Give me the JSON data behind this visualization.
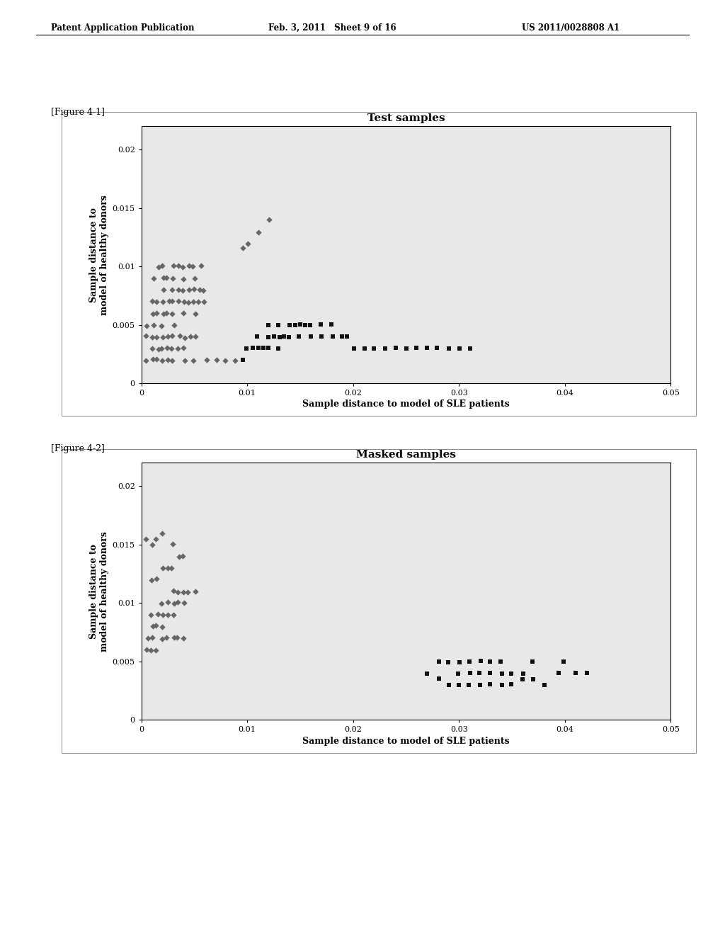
{
  "fig1_title": "Test samples",
  "fig2_title": "Masked samples",
  "xlabel": "Sample distance to model of SLE patients",
  "ylabel": "Sample distance to\nmodel of healthy donors",
  "xlim": [
    0,
    0.05
  ],
  "ylim": [
    0,
    0.022
  ],
  "xticks": [
    0,
    0.01,
    0.02,
    0.03,
    0.04,
    0.05
  ],
  "yticks": [
    0,
    0.005,
    0.01,
    0.015,
    0.02
  ],
  "header_left": "Patent Application Publication",
  "header_mid": "Feb. 3, 2011   Sheet 9 of 16",
  "header_right": "US 2011/0028808 A1",
  "fig1_label": "[Figure 4-1]",
  "fig2_label": "[Figure 4-2]",
  "plot_bg": "#e8e8e8",
  "fig1_cluster1_x": [
    0.0005,
    0.001,
    0.001,
    0.001,
    0.0015,
    0.0015,
    0.002,
    0.002,
    0.002,
    0.002,
    0.0025,
    0.0025,
    0.003,
    0.003,
    0.003,
    0.003,
    0.003,
    0.0035,
    0.0035,
    0.004,
    0.004,
    0.004,
    0.004,
    0.0045,
    0.0045,
    0.005,
    0.005,
    0.005,
    0.005,
    0.0055,
    0.0055,
    0.006,
    0.006,
    0.001,
    0.0015,
    0.002,
    0.002,
    0.0025,
    0.003,
    0.0035,
    0.004,
    0.0045,
    0.005,
    0.0055,
    0.0005,
    0.001,
    0.0015,
    0.002,
    0.0025,
    0.003,
    0.0035,
    0.004,
    0.0045,
    0.005,
    0.001,
    0.0015,
    0.002,
    0.0025,
    0.003,
    0.0035,
    0.004,
    0.0005,
    0.001,
    0.0015,
    0.002,
    0.0025,
    0.003,
    0.004,
    0.005,
    0.006,
    0.007,
    0.008,
    0.009,
    0.0095,
    0.01,
    0.011,
    0.012
  ],
  "fig1_cluster1_y": [
    0.005,
    0.005,
    0.006,
    0.007,
    0.006,
    0.007,
    0.005,
    0.006,
    0.007,
    0.008,
    0.006,
    0.007,
    0.005,
    0.006,
    0.007,
    0.008,
    0.009,
    0.007,
    0.008,
    0.006,
    0.007,
    0.008,
    0.009,
    0.007,
    0.008,
    0.006,
    0.007,
    0.008,
    0.009,
    0.007,
    0.008,
    0.007,
    0.008,
    0.009,
    0.01,
    0.009,
    0.01,
    0.009,
    0.01,
    0.01,
    0.01,
    0.01,
    0.01,
    0.01,
    0.004,
    0.004,
    0.004,
    0.004,
    0.004,
    0.004,
    0.004,
    0.004,
    0.004,
    0.004,
    0.003,
    0.003,
    0.003,
    0.003,
    0.003,
    0.003,
    0.003,
    0.002,
    0.002,
    0.002,
    0.002,
    0.002,
    0.002,
    0.002,
    0.002,
    0.002,
    0.002,
    0.002,
    0.002,
    0.0115,
    0.012,
    0.013,
    0.014
  ],
  "fig1_cluster2_x": [
    0.0095,
    0.01,
    0.0105,
    0.011,
    0.011,
    0.0115,
    0.012,
    0.012,
    0.012,
    0.0125,
    0.013,
    0.013,
    0.013,
    0.0135,
    0.014,
    0.014,
    0.0145,
    0.015,
    0.015,
    0.0155,
    0.016,
    0.016,
    0.017,
    0.017,
    0.018,
    0.018,
    0.019,
    0.0195,
    0.02,
    0.021,
    0.022,
    0.023,
    0.024,
    0.025,
    0.026,
    0.027,
    0.028,
    0.029,
    0.03,
    0.031
  ],
  "fig1_cluster2_y": [
    0.002,
    0.003,
    0.003,
    0.003,
    0.004,
    0.003,
    0.003,
    0.004,
    0.005,
    0.004,
    0.003,
    0.004,
    0.005,
    0.004,
    0.004,
    0.005,
    0.005,
    0.004,
    0.005,
    0.005,
    0.004,
    0.005,
    0.004,
    0.005,
    0.004,
    0.005,
    0.004,
    0.004,
    0.003,
    0.003,
    0.003,
    0.003,
    0.003,
    0.003,
    0.003,
    0.003,
    0.003,
    0.003,
    0.003,
    0.003
  ],
  "fig2_cluster1_x": [
    0.0005,
    0.001,
    0.001,
    0.001,
    0.0015,
    0.0015,
    0.002,
    0.002,
    0.002,
    0.0025,
    0.0025,
    0.003,
    0.003,
    0.003,
    0.0035,
    0.0035,
    0.004,
    0.004,
    0.0045,
    0.005,
    0.0005,
    0.001,
    0.0015,
    0.002,
    0.0025,
    0.003,
    0.0035,
    0.004,
    0.001,
    0.0015,
    0.002,
    0.0025,
    0.003,
    0.0035,
    0.004,
    0.0005,
    0.001,
    0.0015,
    0.002,
    0.003
  ],
  "fig2_cluster1_y": [
    0.007,
    0.007,
    0.008,
    0.009,
    0.008,
    0.009,
    0.008,
    0.009,
    0.01,
    0.009,
    0.01,
    0.009,
    0.01,
    0.011,
    0.01,
    0.011,
    0.01,
    0.011,
    0.011,
    0.011,
    0.006,
    0.006,
    0.006,
    0.007,
    0.007,
    0.007,
    0.007,
    0.007,
    0.012,
    0.012,
    0.013,
    0.013,
    0.013,
    0.014,
    0.014,
    0.0155,
    0.015,
    0.0155,
    0.016,
    0.015
  ],
  "fig2_cluster2_x": [
    0.027,
    0.028,
    0.029,
    0.03,
    0.03,
    0.031,
    0.031,
    0.032,
    0.032,
    0.033,
    0.033,
    0.034,
    0.034,
    0.035,
    0.035,
    0.036,
    0.036,
    0.037,
    0.038,
    0.028,
    0.029,
    0.03,
    0.031,
    0.032,
    0.033,
    0.034,
    0.037,
    0.0395,
    0.04,
    0.041,
    0.042
  ],
  "fig2_cluster2_y": [
    0.004,
    0.0035,
    0.003,
    0.003,
    0.004,
    0.003,
    0.004,
    0.003,
    0.004,
    0.003,
    0.004,
    0.003,
    0.004,
    0.003,
    0.004,
    0.0035,
    0.004,
    0.0035,
    0.003,
    0.005,
    0.005,
    0.005,
    0.005,
    0.005,
    0.005,
    0.005,
    0.005,
    0.004,
    0.005,
    0.004,
    0.004
  ],
  "title_fontsize": 11,
  "axis_label_fontsize": 9,
  "tick_fontsize": 8,
  "marker_size_diamond": 18,
  "marker_size_square": 20
}
